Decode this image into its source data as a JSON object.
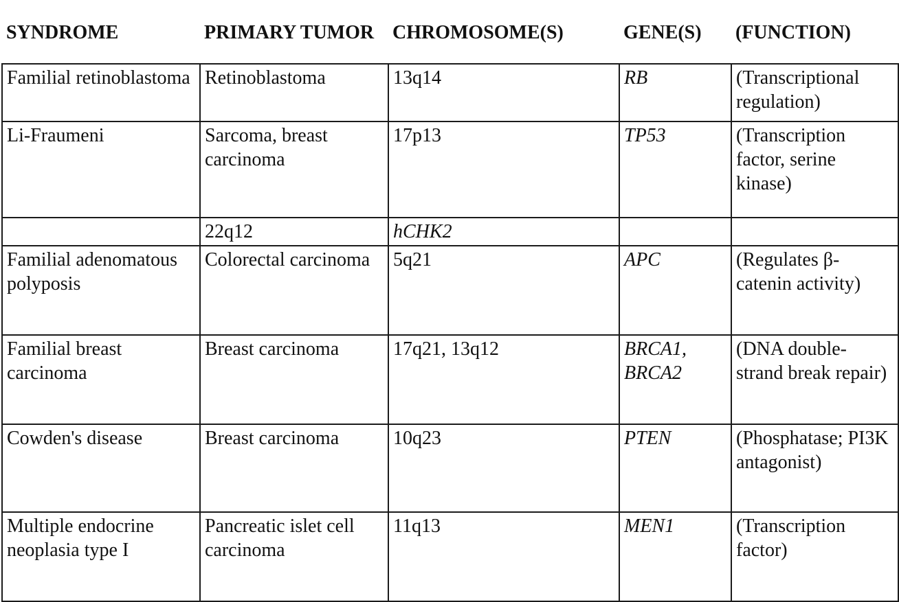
{
  "headers": {
    "syndrome": "SYNDROME",
    "primary_tumor": "PRIMARY TUMOR",
    "chromosomes": "CHROMOSOME(S)",
    "genes": "GENE(S)",
    "function": "(FUNCTION)"
  },
  "rows": [
    {
      "syndrome": "Familial retinoblastoma",
      "primary_tumor": "Retinoblastoma",
      "chromosomes": "13q14",
      "genes": "RB",
      "function": "(Transcriptional regulation)"
    },
    {
      "syndrome": "Li-Fraumeni",
      "primary_tumor": "Sarcoma, breast carcinoma",
      "chromosomes": "17p13",
      "genes": "TP53",
      "function": "(Transcription factor, serine kinase)"
    },
    {
      "syndrome": "",
      "primary_tumor": "22q12",
      "chromosomes": "hCHK2",
      "genes": "",
      "function": ""
    },
    {
      "syndrome": "Familial adenomatous polyposis",
      "primary_tumor": "Colorectal carcinoma",
      "chromosomes": "5q21",
      "genes": "APC",
      "function": "(Regulates β-catenin activity)"
    },
    {
      "syndrome": "Familial breast carcinoma",
      "primary_tumor": "Breast carcinoma",
      "chromosomes": "17q21, 13q12",
      "genes": "BRCA1, BRCA2",
      "function": "(DNA double-strand break repair)"
    },
    {
      "syndrome": "Cowden's disease",
      "primary_tumor": "Breast carcinoma",
      "chromosomes": "10q23",
      "genes": "PTEN",
      "function": "(Phosphatase; PI3K antagonist)"
    },
    {
      "syndrome": "Multiple endocrine neoplasia type I",
      "primary_tumor": "Pancreatic islet cell carcinoma",
      "chromosomes": "11q13",
      "genes": "MEN1",
      "function": "(Transcription factor)"
    }
  ]
}
